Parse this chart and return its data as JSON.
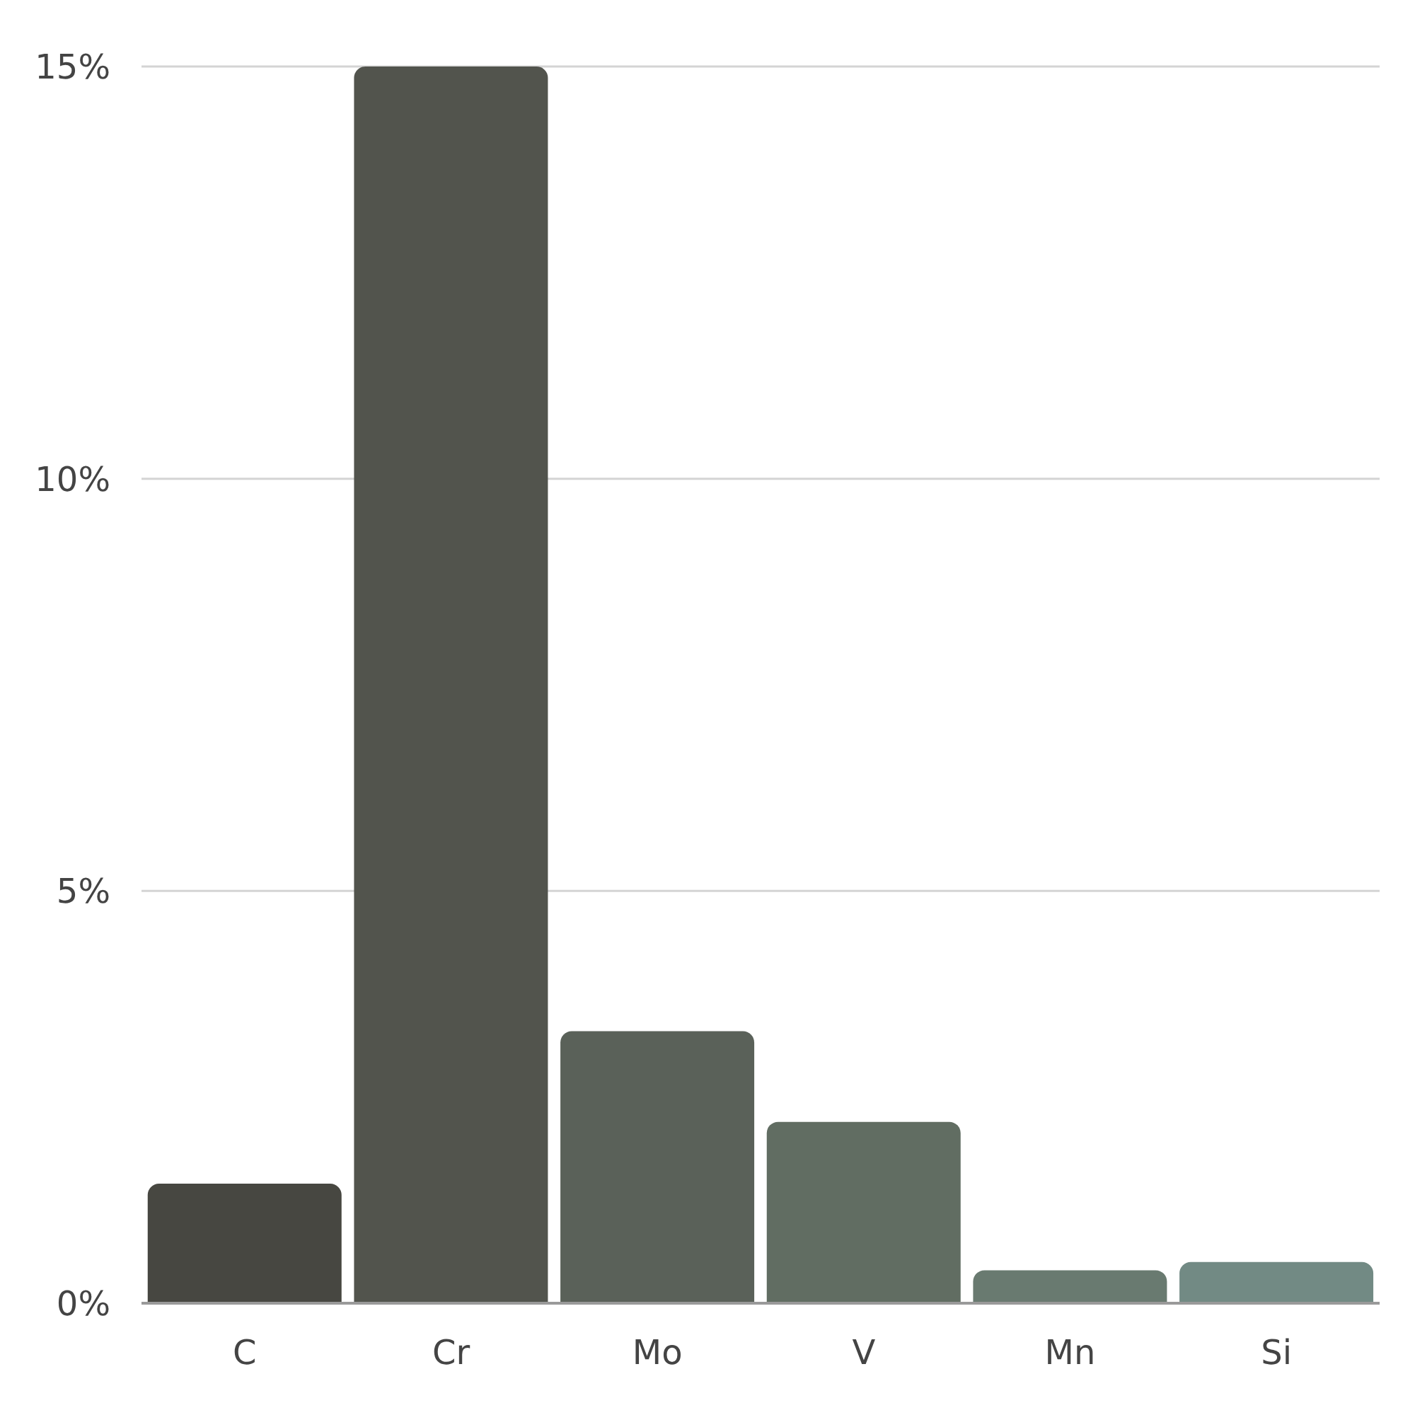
{
  "chart_data": {
    "type": "bar",
    "categories": [
      "C",
      "Cr",
      "Mo",
      "V",
      "Mn",
      "Si"
    ],
    "values": [
      1.45,
      15,
      3.3,
      2.2,
      0.4,
      0.5
    ],
    "colors": [
      "#474741",
      "#52544d",
      "#5a6159",
      "#616d62",
      "#697a70",
      "#728a84"
    ],
    "ylim": [
      0,
      15
    ],
    "yticks": [
      {
        "value": 0,
        "label": "0%"
      },
      {
        "value": 5,
        "label": "5%"
      },
      {
        "value": 10,
        "label": "10%"
      },
      {
        "value": 15,
        "label": "15%"
      }
    ],
    "grid": "y"
  }
}
